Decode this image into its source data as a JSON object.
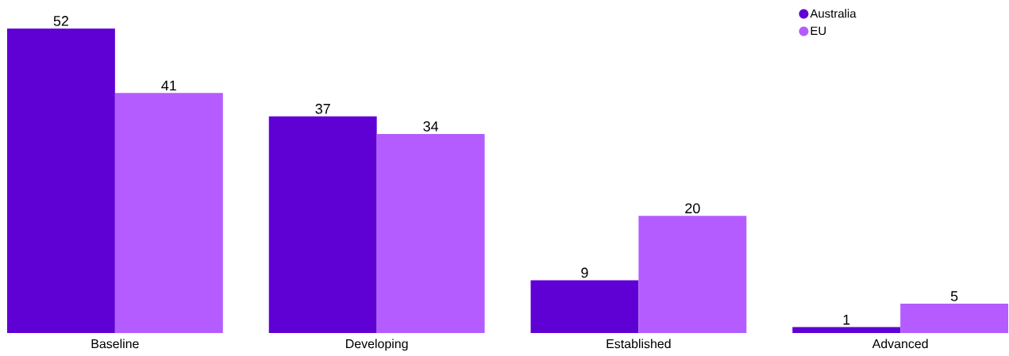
{
  "chart_data": {
    "type": "bar",
    "categories": [
      "Baseline",
      "Developing",
      "Established",
      "Advanced"
    ],
    "series": [
      {
        "name": "Australia",
        "color": "#5f00d4",
        "values": [
          52,
          37,
          9,
          1
        ]
      },
      {
        "name": "EU",
        "color": "#b45cff",
        "values": [
          41,
          34,
          20,
          5
        ]
      }
    ],
    "data_labels": true,
    "legend": "top right"
  }
}
